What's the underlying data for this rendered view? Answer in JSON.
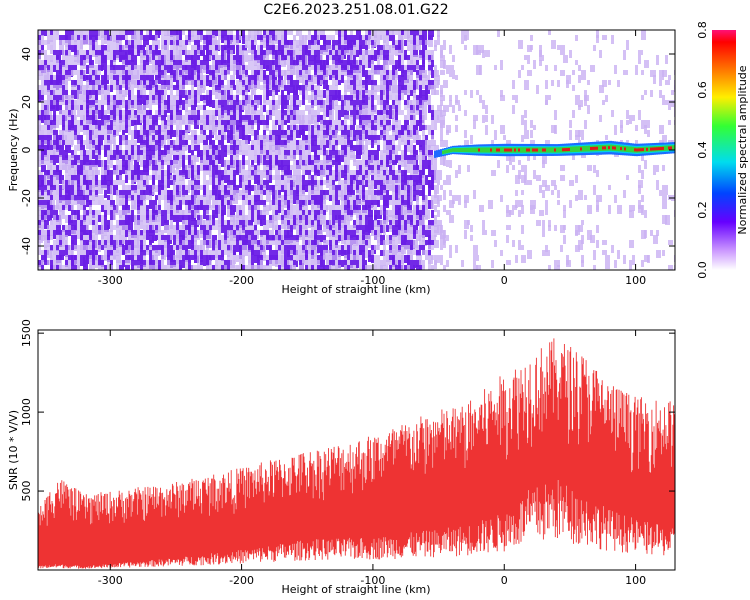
{
  "title": "C2E6.2023.251.08.01.G22",
  "chart_data": [
    {
      "type": "heatmap",
      "name": "spectrogram",
      "xlabel": "Height of straight line (km)",
      "ylabel": "Frequency (Hz)",
      "xlim": [
        -355,
        130
      ],
      "ylim": [
        -50,
        50
      ],
      "xticks": [
        -300,
        -200,
        -100,
        0,
        100
      ],
      "yticks": [
        -40,
        -20,
        0,
        20,
        40
      ],
      "colorbar": {
        "label": "Normalized spectral amplitude",
        "range": [
          0,
          0.8
        ],
        "ticks": [
          "0.0",
          "0.2",
          "0.4",
          "0.6",
          "0.8"
        ]
      },
      "signal": {
        "description_points": [
          {
            "x": -55,
            "freq": -2,
            "amp": 0.25
          },
          {
            "x": -40,
            "freq": 0,
            "amp": 0.35
          },
          {
            "x": -20,
            "freq": 0,
            "amp": 0.6
          },
          {
            "x": 0,
            "freq": 0,
            "amp": 0.7
          },
          {
            "x": 40,
            "freq": 0,
            "amp": 0.65
          },
          {
            "x": 80,
            "freq": 1,
            "amp": 0.8
          },
          {
            "x": 100,
            "freq": 0,
            "amp": 0.7
          },
          {
            "x": 130,
            "freq": 1,
            "amp": 0.6
          }
        ]
      },
      "colors": {
        "noise_dense": "#6a1ee6",
        "noise_light": "#c9b0f2",
        "signal_core": "#e01a1a",
        "signal_mid": "#36d23c",
        "signal_edge": "#1e6bff"
      }
    },
    {
      "type": "line",
      "name": "snr",
      "xlabel": "Height of straight line (km)",
      "ylabel": "SNR (10 * V/V)",
      "xlim": [
        -355,
        130
      ],
      "ylim": [
        0,
        1520
      ],
      "xticks": [
        -300,
        -200,
        -100,
        0,
        100
      ],
      "yticks": [
        500,
        1000,
        1500
      ],
      "envelope": {
        "x": [
          -355,
          -340,
          -320,
          -300,
          -250,
          -200,
          -150,
          -100,
          -50,
          -30,
          0,
          20,
          40,
          60,
          80,
          100,
          130
        ],
        "upper": [
          380,
          600,
          480,
          500,
          560,
          650,
          760,
          860,
          1020,
          1050,
          1250,
          1380,
          1480,
          1380,
          1200,
          1100,
          1080
        ],
        "lower": [
          20,
          30,
          20,
          30,
          60,
          100,
          150,
          160,
          200,
          220,
          280,
          400,
          450,
          380,
          300,
          250,
          200
        ]
      },
      "color": "#ee3333"
    }
  ]
}
